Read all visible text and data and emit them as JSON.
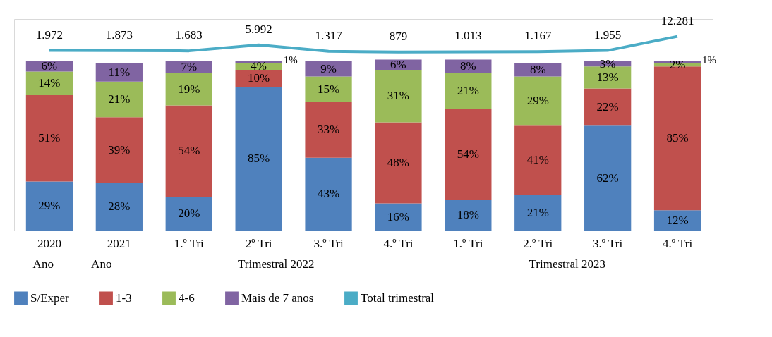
{
  "chart_data": {
    "type": "bar",
    "stacked": true,
    "categories": [
      "2020",
      "2021",
      "1.º Tri",
      "2º Tri",
      "3.º Tri",
      "4.º Tri",
      "1.º Tri",
      "2.º Tri",
      "3.º Tri",
      "4.º Tri"
    ],
    "series": [
      {
        "name": "S/Exper",
        "color": "#4f81bd",
        "values": [
          29,
          28,
          20,
          85,
          43,
          16,
          18,
          21,
          62,
          12
        ],
        "value_labels": [
          "29%",
          "28%",
          "20%",
          "85%",
          "43%",
          "16%",
          "18%",
          "21%",
          "62%",
          "12%"
        ]
      },
      {
        "name": "1-3",
        "color": "#c0504d",
        "values": [
          51,
          39,
          54,
          10,
          33,
          48,
          54,
          41,
          22,
          85
        ],
        "value_labels": [
          "51%",
          "39%",
          "54%",
          "10%",
          "33%",
          "48%",
          "54%",
          "41%",
          "22%",
          "85%"
        ]
      },
      {
        "name": "4-6",
        "color": "#9bbb59",
        "values": [
          14,
          21,
          19,
          4,
          15,
          31,
          21,
          29,
          13,
          2
        ],
        "value_labels": [
          "14%",
          "21%",
          "19%",
          "4%",
          "15%",
          "31%",
          "21%",
          "29%",
          "13%",
          "2%"
        ]
      },
      {
        "name": "Mais de 7 anos",
        "color": "#8064a2",
        "values": [
          6,
          11,
          7,
          1,
          9,
          6,
          8,
          8,
          3,
          1
        ],
        "value_labels": [
          "6%",
          "11%",
          "7%",
          "1%",
          "9%",
          "6%",
          "8%",
          "8%",
          "3%",
          "1%"
        ]
      },
      {
        "name": "Total trimestral",
        "type": "line",
        "axis": "y2",
        "color": "#4bacc6",
        "values": [
          1972,
          1873,
          1683,
          5992,
          1317,
          879,
          1013,
          1167,
          1955,
          12281
        ],
        "value_labels": [
          "1.972",
          "1.873",
          "1.683",
          "5.992",
          "1.317",
          "879",
          "1.013",
          "1.167",
          "1.955",
          "12.281"
        ]
      }
    ],
    "ylim": [
      0,
      125
    ],
    "y2lim": [
      -130000,
      25000
    ],
    "tick_labels": "x",
    "legend": "bottom",
    "line_style": "solid",
    "marker": "none",
    "annotations": [
      "Ano",
      "Ano",
      "Trimestral 2022",
      "Trimestral 2023"
    ]
  }
}
